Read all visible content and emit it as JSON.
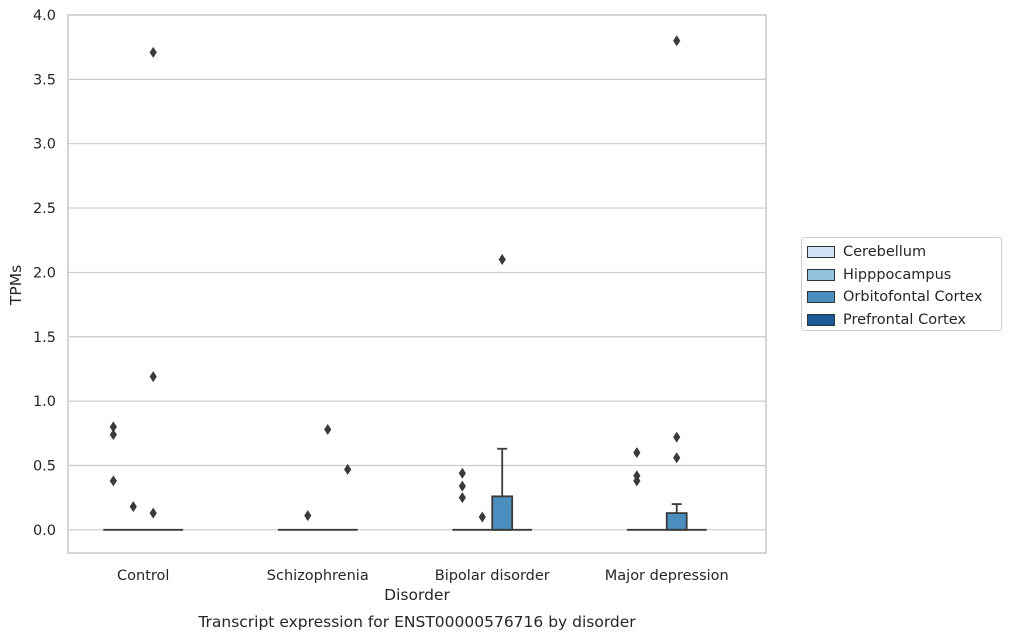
{
  "chart_data": {
    "type": "boxplot",
    "title": "Transcript expression for ENST00000576716 by disorder",
    "xlabel": "Disorder",
    "ylabel": "TPMs",
    "ylim": [
      -0.18,
      4.0
    ],
    "yticks": [
      "0.0",
      "0.5",
      "1.0",
      "1.5",
      "2.0",
      "2.5",
      "3.0",
      "3.5",
      "4.0"
    ],
    "grid": "horizontal",
    "legend_position": "right",
    "categories": [
      "Control",
      "Schizophrenia",
      "Bipolar disorder",
      "Major depression"
    ],
    "series": [
      {
        "name": "Cerebellum",
        "color": "#cfe1f2",
        "boxes": [
          {
            "q1": 0,
            "median": 0,
            "q3": 0,
            "whisker_low": 0,
            "whisker_high": 0,
            "outliers": [
              0.8,
              0.74,
              0.38
            ]
          },
          {
            "q1": 0,
            "median": 0,
            "q3": 0,
            "whisker_low": 0,
            "whisker_high": 0,
            "outliers": []
          },
          {
            "q1": 0,
            "median": 0,
            "q3": 0,
            "whisker_low": 0,
            "whisker_high": 0,
            "outliers": [
              0.44,
              0.34,
              0.25
            ]
          },
          {
            "q1": 0,
            "median": 0,
            "q3": 0,
            "whisker_low": 0,
            "whisker_high": 0,
            "outliers": [
              0.6,
              0.42,
              0.38
            ]
          }
        ]
      },
      {
        "name": "Hipppocampus",
        "color": "#93c4de",
        "boxes": [
          {
            "q1": 0,
            "median": 0,
            "q3": 0,
            "whisker_low": 0,
            "whisker_high": 0,
            "outliers": [
              0.18
            ]
          },
          {
            "q1": 0,
            "median": 0,
            "q3": 0,
            "whisker_low": 0,
            "whisker_high": 0,
            "outliers": [
              0.11
            ]
          },
          {
            "q1": 0,
            "median": 0,
            "q3": 0,
            "whisker_low": 0,
            "whisker_high": 0,
            "outliers": [
              0.1
            ]
          },
          {
            "q1": 0,
            "median": 0,
            "q3": 0,
            "whisker_low": 0,
            "whisker_high": 0,
            "outliers": []
          }
        ]
      },
      {
        "name": "Orbitofontal Cortex",
        "color": "#4a8fc0",
        "boxes": [
          {
            "q1": 0,
            "median": 0,
            "q3": 0,
            "whisker_low": 0,
            "whisker_high": 0,
            "outliers": [
              3.71,
              1.19,
              0.13
            ]
          },
          {
            "q1": 0,
            "median": 0,
            "q3": 0,
            "whisker_low": 0,
            "whisker_high": 0,
            "outliers": [
              0.78
            ]
          },
          {
            "q1": 0,
            "median": 0,
            "q3": 0.26,
            "whisker_low": 0,
            "whisker_high": 0.63,
            "outliers": [
              2.1
            ]
          },
          {
            "q1": 0,
            "median": 0,
            "q3": 0.13,
            "whisker_low": 0,
            "whisker_high": 0.2,
            "outliers": [
              3.8,
              0.72,
              0.56
            ]
          }
        ]
      },
      {
        "name": "Prefrontal Cortex",
        "color": "#1a5b9b",
        "boxes": [
          {
            "q1": 0,
            "median": 0,
            "q3": 0,
            "whisker_low": 0,
            "whisker_high": 0,
            "outliers": []
          },
          {
            "q1": 0,
            "median": 0,
            "q3": 0,
            "whisker_low": 0,
            "whisker_high": 0,
            "outliers": [
              0.47
            ]
          },
          {
            "q1": 0,
            "median": 0,
            "q3": 0,
            "whisker_low": 0,
            "whisker_high": 0,
            "outliers": []
          },
          {
            "q1": 0,
            "median": 0,
            "q3": 0,
            "whisker_low": 0,
            "whisker_high": 0,
            "outliers": []
          }
        ]
      }
    ]
  }
}
